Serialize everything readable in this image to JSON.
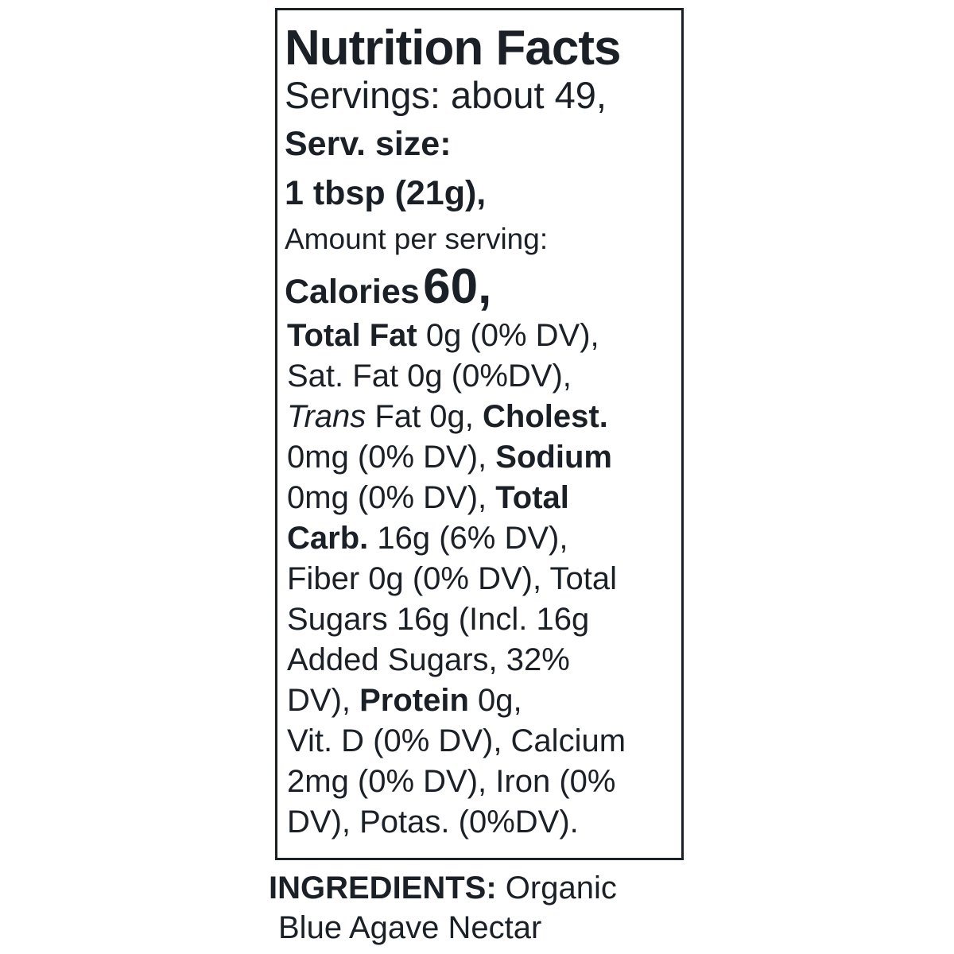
{
  "label": {
    "title": "Nutrition Facts",
    "servings": "Servings: about 49,",
    "serv_size_label": "Serv. size:",
    "serv_size_value": "1 tbsp (21g),",
    "amount_per_serving": "Amount per serving:",
    "calories_label": "Calories",
    "calories_value": "60,",
    "lines": [
      [
        {
          "t": "Total Fat",
          "s": "b"
        },
        {
          "t": " 0g (0% DV),",
          "s": ""
        }
      ],
      [
        {
          "t": "Sat. Fat 0g (0%DV),",
          "s": ""
        }
      ],
      [
        {
          "t": "Trans",
          "s": "i"
        },
        {
          "t": " Fat 0g, ",
          "s": ""
        },
        {
          "t": "Cholest.",
          "s": "b"
        }
      ],
      [
        {
          "t": "0mg (0% DV), ",
          "s": ""
        },
        {
          "t": "Sodium",
          "s": "b"
        }
      ],
      [
        {
          "t": "0mg (0% DV), ",
          "s": ""
        },
        {
          "t": "Total",
          "s": "b"
        }
      ],
      [
        {
          "t": "Carb.",
          "s": "b"
        },
        {
          "t": " 16g (6% DV),",
          "s": ""
        }
      ],
      [
        {
          "t": "Fiber 0g (0% DV), Total",
          "s": ""
        }
      ],
      [
        {
          "t": "Sugars 16g (Incl. 16g",
          "s": ""
        }
      ],
      [
        {
          "t": "Added Sugars, 32%",
          "s": ""
        }
      ],
      [
        {
          "t": "DV), ",
          "s": ""
        },
        {
          "t": "Protein",
          "s": "b"
        },
        {
          "t": " 0g,",
          "s": ""
        }
      ],
      [
        {
          "t": "Vit. D (0% DV), Calcium",
          "s": ""
        }
      ],
      [
        {
          "t": "2mg (0% DV), Iron (0%",
          "s": ""
        }
      ],
      [
        {
          "t": "DV), Potas. (0%DV).",
          "s": ""
        }
      ]
    ]
  },
  "ingredients": {
    "label": "INGREDIENTS:",
    "line1": " Organic",
    "line2": "Blue Agave Nectar"
  },
  "colors": {
    "text": "#1b2027",
    "background": "#ffffff"
  }
}
